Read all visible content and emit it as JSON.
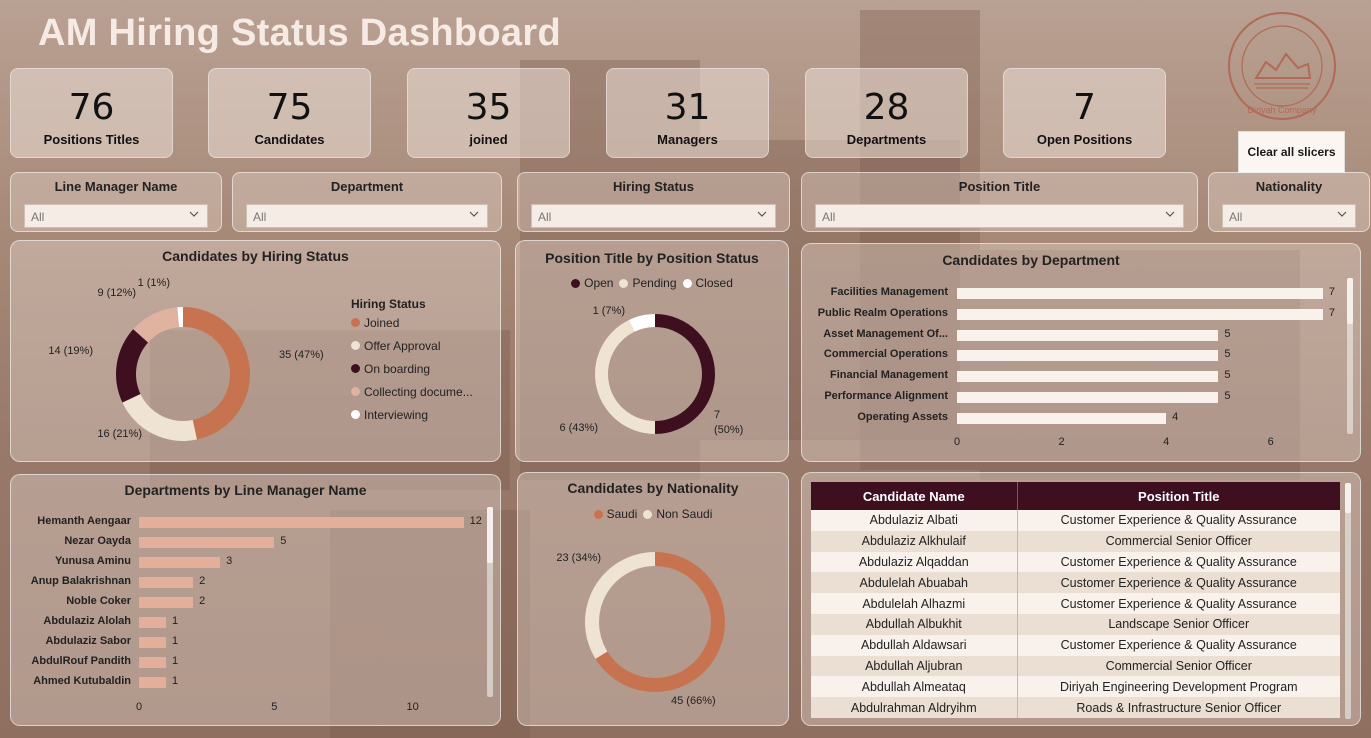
{
  "title": "AM Hiring Status Dashboard",
  "logo": {
    "text": "Diriyah Company"
  },
  "kpis": [
    {
      "value": "76",
      "label": "Positions Titles"
    },
    {
      "value": "75",
      "label": "Candidates"
    },
    {
      "value": "35",
      "label": "joined"
    },
    {
      "value": "31",
      "label": "Managers"
    },
    {
      "value": "28",
      "label": "Departments"
    },
    {
      "value": "7",
      "label": "Open Positions"
    }
  ],
  "clear_button": "Clear all slicers",
  "slicers": [
    {
      "title": "Line Manager Name",
      "value": "All"
    },
    {
      "title": "Department",
      "value": "All"
    },
    {
      "title": "Hiring Status",
      "value": "All"
    },
    {
      "title": "Position Title",
      "value": "All"
    },
    {
      "title": "Nationality",
      "value": "All"
    }
  ],
  "colors": {
    "joined": "#c8734f",
    "offer_approval": "#efe3d3",
    "on_boarding": "#3d0f1f",
    "collecting": "#e0b2a0",
    "interviewing": "#ffffff",
    "open": "#3d0f1f",
    "pending": "#efe3d3",
    "closed": "#ffffff",
    "saudi": "#c8734f",
    "non_saudi": "#efe3d3",
    "bar_light": "#f8f1ec",
    "bar_salmon": "#e3ae9a",
    "table_header": "#3d0f1f"
  },
  "chart_data": [
    {
      "type": "pie",
      "title": "Candidates by Hiring Status",
      "legend_title": "Hiring Status",
      "categories": [
        "Joined",
        "Offer Approval",
        "On boarding",
        "Collecting docume...",
        "Interviewing"
      ],
      "values": [
        35,
        16,
        14,
        9,
        1
      ],
      "labels": [
        "35 (47%)",
        "16 (21%)",
        "14 (19%)",
        "9 (12%)",
        "1 (1%)"
      ]
    },
    {
      "type": "pie",
      "title": "Position Title by Position Status",
      "categories": [
        "Open",
        "Pending",
        "Closed"
      ],
      "values": [
        7,
        6,
        1
      ],
      "labels": [
        "7 (50%)",
        "6 (43%)",
        "1 (7%)"
      ]
    },
    {
      "type": "bar",
      "title": "Candidates by Department",
      "orientation": "horizontal",
      "categories": [
        "Facilities Management",
        "Public Realm Operations",
        "Asset Management Of...",
        "Commercial Operations",
        "Financial Management",
        "Performance Alignment",
        "Operating Assets"
      ],
      "values": [
        7,
        7,
        5,
        5,
        5,
        5,
        4
      ],
      "x_ticks": [
        "0",
        "2",
        "4",
        "6"
      ],
      "xlim": [
        0,
        7.5
      ]
    },
    {
      "type": "bar",
      "title": "Departments by Line Manager Name",
      "orientation": "horizontal",
      "categories": [
        "Hemanth Aengaar",
        "Nezar Oayda",
        "Yunusa Aminu",
        "Anup Balakrishnan",
        "Noble Coker",
        "Abdulaziz Alolah",
        "Abdulaziz Sabor",
        "AbdulRouf Pandith",
        "Ahmed Kutubaldin"
      ],
      "values": [
        12,
        5,
        3,
        2,
        2,
        1,
        1,
        1,
        1
      ],
      "x_ticks": [
        "0",
        "5",
        "10"
      ],
      "xlim": [
        0,
        12.2
      ]
    },
    {
      "type": "pie",
      "title": "Candidates by Nationality",
      "categories": [
        "Saudi",
        "Non Saudi"
      ],
      "values": [
        45,
        23
      ],
      "labels": [
        "45 (66%)",
        "23 (34%)"
      ]
    }
  ],
  "table": {
    "headers": [
      "Candidate Name",
      "Position Title"
    ],
    "rows": [
      [
        "Abdulaziz Albati",
        "Customer Experience & Quality Assurance"
      ],
      [
        "Abdulaziz Alkhulaif",
        "Commercial Senior Officer"
      ],
      [
        "Abdulaziz Alqaddan",
        "Customer Experience & Quality Assurance"
      ],
      [
        "Abdulelah Abuabah",
        "Customer Experience & Quality Assurance"
      ],
      [
        "Abdulelah Alhazmi",
        "Customer Experience & Quality Assurance"
      ],
      [
        "Abdullah Albukhit",
        "Landscape Senior Officer"
      ],
      [
        "Abdullah Aldawsari",
        "Customer Experience & Quality Assurance"
      ],
      [
        "Abdullah Aljubran",
        "Commercial Senior Officer"
      ],
      [
        "Abdullah Almeataq",
        "Diriyah Engineering Development Program"
      ],
      [
        "Abdulrahman Aldryihm",
        "Roads & Infrastructure Senior Officer"
      ]
    ]
  }
}
